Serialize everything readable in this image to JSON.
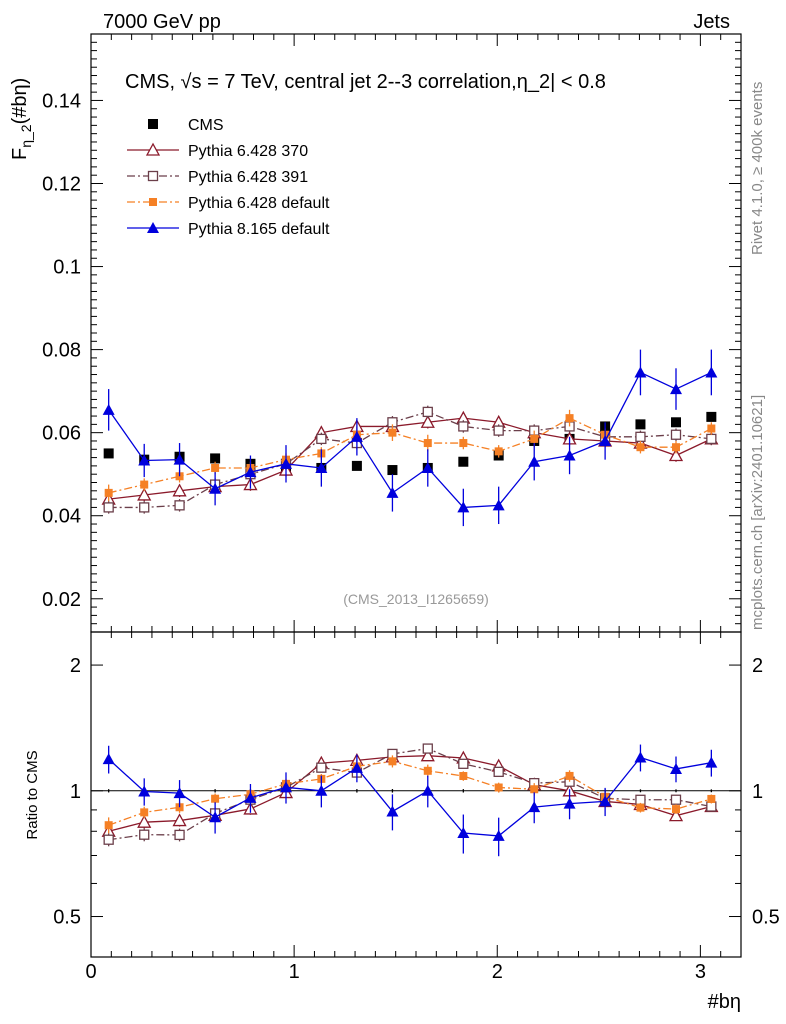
{
  "header": {
    "left": "7000 GeV pp",
    "right": "Jets",
    "side_rivet": "Rivet 4.1.0, ≥ 400k events",
    "side_mcplots": "mcplots.cern.ch [arXiv:2401.10621]"
  },
  "chart_data": {
    "type": "scatter",
    "title": "CMS, √s = 7 TeV, central jet 2--3 correlation,η_2| < 0.8",
    "watermark": "(CMS_2013_I1265659)",
    "ylabel_main": "F_η_2(#bη)",
    "ylabel_ratio": "Ratio to CMS",
    "xlabel": "#bη",
    "xlim": [
      0,
      3.2
    ],
    "ylim_main": [
      0.012,
      0.156
    ],
    "ylim_ratio": [
      0.4,
      2.4
    ],
    "x_ticks": [
      "0",
      "1",
      "2",
      "3"
    ],
    "y_ticks_main": [
      "0.02",
      "0.04",
      "0.06",
      "0.08",
      "0.1",
      "0.12",
      "0.14"
    ],
    "y_ticks_ratio": [
      "0.5",
      "1",
      "2"
    ],
    "x": [
      0.087,
      0.262,
      0.436,
      0.611,
      0.785,
      0.96,
      1.134,
      1.309,
      1.484,
      1.658,
      1.833,
      2.007,
      2.182,
      2.356,
      2.531,
      2.705,
      2.88,
      3.054
    ],
    "series": [
      {
        "name": "CMS",
        "color": "#000000",
        "marker": "square-filled",
        "line": "none",
        "values": [
          0.055,
          0.0535,
          0.0542,
          0.0538,
          0.0525,
          0.0515,
          0.0515,
          0.052,
          0.051,
          0.0515,
          0.053,
          0.0545,
          0.058,
          0.0585,
          0.0615,
          0.062,
          0.0625,
          0.0638
        ],
        "errors": [
          0.0005,
          0.0005,
          0.0005,
          0.0005,
          0.0005,
          0.0005,
          0.0005,
          0.0005,
          0.0005,
          0.0005,
          0.0005,
          0.0005,
          0.0005,
          0.0005,
          0.0005,
          0.0005,
          0.0005,
          0.0005
        ]
      },
      {
        "name": "Pythia 6.428 370",
        "color": "#8b1a2b",
        "marker": "triangle-open",
        "line": "solid",
        "values": [
          0.044,
          0.045,
          0.046,
          0.047,
          0.0475,
          0.051,
          0.06,
          0.0615,
          0.0615,
          0.0625,
          0.0635,
          0.0625,
          0.06,
          0.0585,
          0.058,
          0.0575,
          0.0545,
          0.0585
        ],
        "errors": [
          0.002,
          0.0015,
          0.0015,
          0.0015,
          0.0015,
          0.0015,
          0.0015,
          0.0015,
          0.0015,
          0.0015,
          0.0015,
          0.0015,
          0.0015,
          0.0015,
          0.0015,
          0.0015,
          0.0015,
          0.0015
        ]
      },
      {
        "name": "Pythia 6.428 391",
        "color": "#6b3f4a",
        "marker": "square-open",
        "line": "dashdot",
        "values": [
          0.042,
          0.042,
          0.0425,
          0.0475,
          0.05,
          0.0525,
          0.0585,
          0.0575,
          0.0625,
          0.065,
          0.0615,
          0.0605,
          0.0605,
          0.0615,
          0.059,
          0.059,
          0.0595,
          0.0585
        ],
        "errors": [
          0.0015,
          0.0015,
          0.0015,
          0.0015,
          0.0015,
          0.0015,
          0.0015,
          0.0015,
          0.0015,
          0.0015,
          0.0015,
          0.0015,
          0.0015,
          0.0015,
          0.0015,
          0.0015,
          0.0015,
          0.0015
        ]
      },
      {
        "name": "Pythia 6.428 default",
        "color": "#f58025",
        "marker": "square-filled-small",
        "line": "dashdot",
        "values": [
          0.0455,
          0.0475,
          0.0495,
          0.0515,
          0.0515,
          0.0535,
          0.055,
          0.0595,
          0.06,
          0.0575,
          0.0575,
          0.0555,
          0.0585,
          0.0635,
          0.0595,
          0.0565,
          0.0565,
          0.061
        ],
        "errors": [
          0.002,
          0.0015,
          0.0015,
          0.0015,
          0.0015,
          0.0015,
          0.0015,
          0.002,
          0.002,
          0.002,
          0.0015,
          0.0015,
          0.002,
          0.002,
          0.0015,
          0.0015,
          0.0015,
          0.0015
        ]
      },
      {
        "name": "Pythia 8.165 default",
        "color": "#0000dd",
        "marker": "triangle-filled",
        "line": "solid",
        "values": [
          0.0655,
          0.0533,
          0.0535,
          0.0465,
          0.0505,
          0.0525,
          0.0515,
          0.059,
          0.0455,
          0.0515,
          0.042,
          0.0425,
          0.053,
          0.0545,
          0.058,
          0.0745,
          0.0705,
          0.0745
        ],
        "errors": [
          0.005,
          0.004,
          0.004,
          0.004,
          0.004,
          0.0045,
          0.0045,
          0.0045,
          0.0045,
          0.0045,
          0.0045,
          0.0045,
          0.0045,
          0.0045,
          0.0045,
          0.0055,
          0.005,
          0.0055
        ]
      }
    ]
  }
}
